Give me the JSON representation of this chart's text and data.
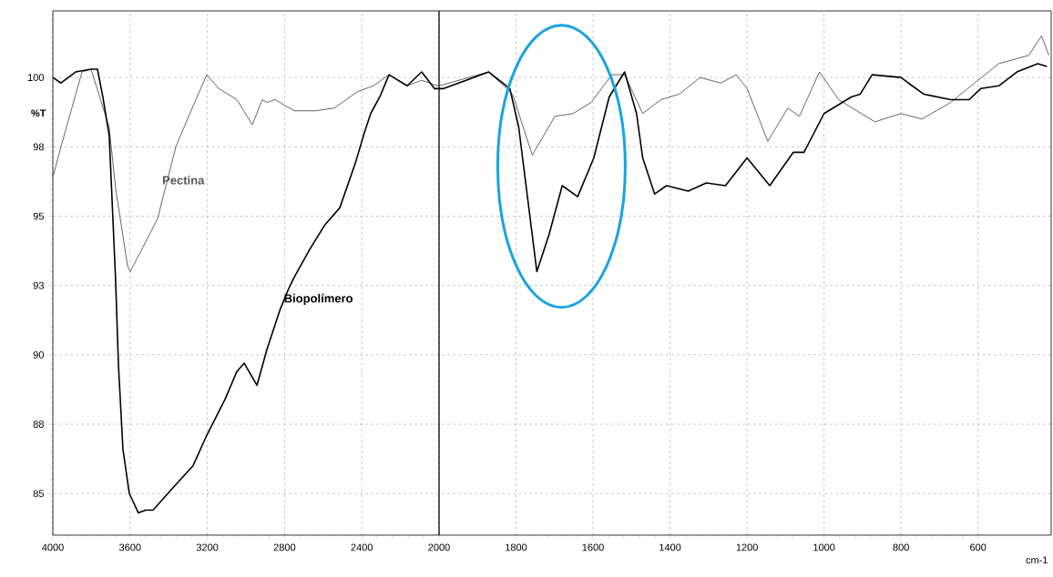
{
  "chart_data": [
    {
      "type": "line",
      "ylabel": "%T",
      "xlim": [
        4000,
        2000
      ],
      "ylim": [
        83.5,
        102.4
      ],
      "xticks": [
        4000,
        3600,
        3200,
        2800,
        2400,
        2000
      ],
      "yticks": [
        {
          "value": 85,
          "label": "85"
        },
        {
          "value": 87.5,
          "label": "88"
        },
        {
          "value": 90,
          "label": "90"
        },
        {
          "value": 92.5,
          "label": "93"
        },
        {
          "value": 95,
          "label": "95"
        },
        {
          "value": 97.5,
          "label": "98"
        },
        {
          "value": 100,
          "label": "100"
        }
      ],
      "grid": true,
      "marker": "none",
      "line_style": "solid",
      "series": [
        {
          "name": "Pectina",
          "color": "#555555",
          "x": [
            4000,
            3958,
            3849,
            3802,
            3708,
            3675,
            3613,
            3599,
            3458,
            3363,
            3297,
            3203,
            3141,
            3047,
            2967,
            2915,
            2891,
            2849,
            2750,
            2637,
            2542,
            2420,
            2340,
            2259,
            2165,
            2090,
            2009,
            2000
          ],
          "values": [
            96.4,
            97.5,
            100.2,
            100.3,
            98.2,
            96.0,
            93.2,
            93.0,
            94.9,
            97.5,
            98.6,
            100.1,
            99.6,
            99.2,
            98.3,
            99.2,
            99.1,
            99.2,
            98.8,
            98.8,
            98.9,
            99.5,
            99.7,
            100.1,
            99.7,
            99.9,
            99.7,
            99.7
          ]
        },
        {
          "name": "Biopolímero",
          "color": "#000000",
          "x": [
            4000,
            3958,
            3882,
            3802,
            3769,
            3741,
            3708,
            3675,
            3660,
            3637,
            3604,
            3557,
            3519,
            3481,
            3392,
            3274,
            3203,
            3108,
            3047,
            3009,
            2943,
            2891,
            2825,
            2778,
            2750,
            2670,
            2590,
            2514,
            2434,
            2387,
            2354,
            2307,
            2259,
            2165,
            2090,
            2024,
            2000
          ],
          "values": [
            100.0,
            99.8,
            100.2,
            100.3,
            100.3,
            99.3,
            97.9,
            92.7,
            89.6,
            86.6,
            85.0,
            84.3,
            84.4,
            84.4,
            85.1,
            86.0,
            87.1,
            88.4,
            89.4,
            89.7,
            88.9,
            90.2,
            91.6,
            92.4,
            92.8,
            93.8,
            94.7,
            95.3,
            96.9,
            98.0,
            98.7,
            99.3,
            100.1,
            99.7,
            100.2,
            99.6,
            99.6
          ]
        }
      ]
    },
    {
      "type": "line",
      "xlabel": "cm-1",
      "xlim": [
        2000,
        410
      ],
      "ylim": [
        83.5,
        102.4
      ],
      "xticks": [
        1800,
        1600,
        1400,
        1200,
        1000,
        800,
        600
      ],
      "yticks": [
        85,
        87.5,
        90,
        92.5,
        95,
        97.5,
        100
      ],
      "tick_labels": "x",
      "grid": true,
      "marker": "none",
      "line_style": "solid",
      "series": [
        {
          "color": "#555555",
          "x": [
            2000,
            1871,
            1809,
            1758,
            1699,
            1652,
            1605,
            1551,
            1518,
            1471,
            1424,
            1376,
            1322,
            1268,
            1228,
            1200,
            1146,
            1094,
            1064,
            1012,
            962,
            868,
            800,
            746,
            671,
            600,
            546,
            468,
            435,
            416
          ],
          "values": [
            99.7,
            100.2,
            99.4,
            97.2,
            98.6,
            98.7,
            99.1,
            100.1,
            100.1,
            98.7,
            99.2,
            99.4,
            100.0,
            99.8,
            100.1,
            99.6,
            97.7,
            98.9,
            98.6,
            100.2,
            99.2,
            98.4,
            98.7,
            98.5,
            99.1,
            99.9,
            100.5,
            100.8,
            101.5,
            100.8
          ]
        },
        {
          "color": "#000000",
          "x": [
            2000,
            1988,
            1871,
            1816,
            1793,
            1746,
            1715,
            1680,
            1640,
            1598,
            1558,
            1518,
            1487,
            1471,
            1440,
            1409,
            1353,
            1306,
            1256,
            1200,
            1141,
            1080,
            1052,
            1000,
            929,
            906,
            875,
            800,
            781,
            741,
            671,
            623,
            593,
            546,
            499,
            445,
            421
          ],
          "values": [
            99.6,
            99.6,
            100.2,
            99.6,
            98.2,
            93.0,
            94.3,
            96.1,
            95.7,
            97.1,
            99.3,
            100.2,
            98.7,
            97.1,
            95.8,
            96.1,
            95.9,
            96.2,
            96.1,
            97.1,
            96.1,
            97.3,
            97.3,
            98.7,
            99.3,
            99.4,
            100.1,
            100.0,
            99.8,
            99.4,
            99.2,
            99.2,
            99.6,
            99.7,
            100.2,
            100.5,
            100.4
          ]
        }
      ]
    }
  ]
}
